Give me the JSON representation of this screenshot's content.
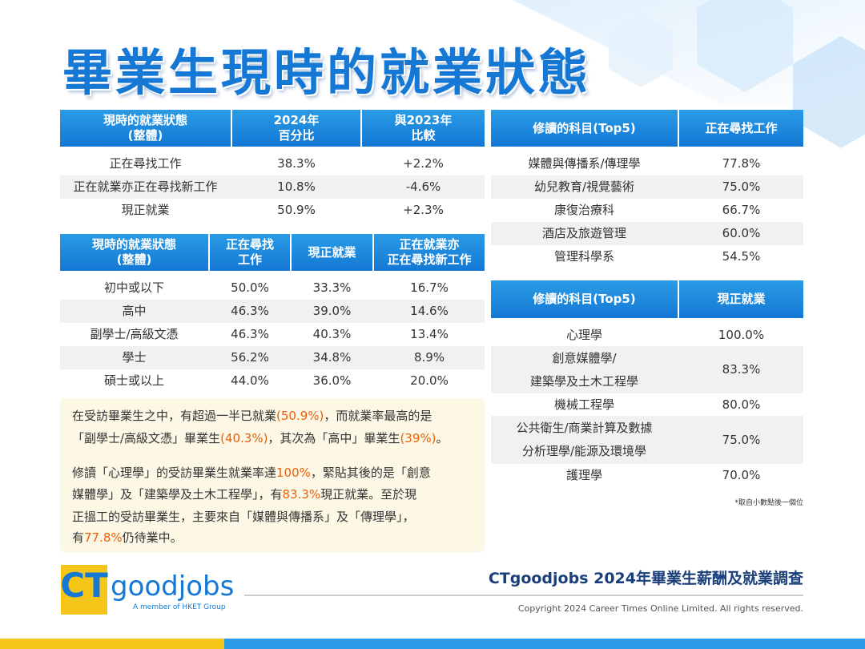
{
  "title": "畢業生現時的就業狀態",
  "table_overall": {
    "columns": [
      [
        "現時的就業狀態",
        "(整體)"
      ],
      [
        "2024年",
        "百分比"
      ],
      [
        "與2023年",
        "比較"
      ]
    ],
    "rows": [
      [
        "正在尋找工作",
        "38.3%",
        "+2.2%"
      ],
      [
        "正在就業亦正在尋找新工作",
        "10.8%",
        "-4.6%"
      ],
      [
        "現正就業",
        "50.9%",
        "+2.3%"
      ]
    ]
  },
  "table_education": {
    "columns": [
      [
        "現時的就業狀態",
        "(整體)"
      ],
      [
        "正在尋找",
        "工作"
      ],
      [
        "現正就業"
      ],
      [
        "正在就業亦",
        "正在尋找新工作"
      ]
    ],
    "rows": [
      [
        "初中或以下",
        "50.0%",
        "33.3%",
        "16.7%"
      ],
      [
        "高中",
        "46.3%",
        "39.0%",
        "14.6%"
      ],
      [
        "副學士/高級文憑",
        "46.3%",
        "40.3%",
        "13.4%"
      ],
      [
        "學士",
        "56.2%",
        "34.8%",
        "8.9%"
      ],
      [
        "碩士或以上",
        "44.0%",
        "36.0%",
        "20.0%"
      ]
    ]
  },
  "table_seeking": {
    "columns": [
      [
        "修讀的科目(Top5)"
      ],
      [
        "正在尋找工作"
      ]
    ],
    "rows": [
      [
        "媒體與傳播系/傳理學",
        "77.8%"
      ],
      [
        "幼兒教育/視覺藝術",
        "75.0%"
      ],
      [
        "康復治療科",
        "66.7%"
      ],
      [
        "酒店及旅遊管理",
        "60.0%"
      ],
      [
        "管理科學系",
        "54.5%"
      ]
    ]
  },
  "table_employed": {
    "columns": [
      [
        "修讀的科目(Top5)"
      ],
      [
        "現正就業"
      ]
    ],
    "rows": [
      [
        "心理學",
        "100.0%"
      ],
      [
        [
          "創意媒體學/",
          "建築學及土木工程學"
        ],
        "83.3%"
      ],
      [
        "機械工程學",
        "80.0%"
      ],
      [
        [
          "公共衛生/商業計算及數據",
          "分析理學/能源及環境學"
        ],
        "75.0%"
      ],
      [
        "護理學",
        "70.0%"
      ]
    ]
  },
  "note": "*取自小數點後一個位",
  "summary": [
    [
      [
        {
          "text": "在受訪畢業生之中，有超過一半已就業"
        },
        {
          "text": "(50.9%)",
          "highlight": true
        },
        {
          "text": "，而就業率最高的是"
        }
      ],
      [
        {
          "text": "「副學士/高級文憑」畢業生"
        },
        {
          "text": "(40.3%)",
          "highlight": true
        },
        {
          "text": "，其次為「高中」畢業生"
        },
        {
          "text": "(39%)",
          "highlight": true
        },
        {
          "text": "。"
        }
      ]
    ],
    [
      [
        {
          "text": "修讀「心理學」的受訪畢業生就業率達"
        },
        {
          "text": "100%",
          "highlight": true
        },
        {
          "text": "，緊貼其後的是「創意"
        }
      ],
      [
        {
          "text": "媒體學」及「建築學及土木工程學」，有"
        },
        {
          "text": "83.3%",
          "highlight": true
        },
        {
          "text": "現正就業。至於現"
        }
      ],
      [
        {
          "text": "正搵工的受訪畢業生，主要來自「媒體與傳播系」及「傳理學」，"
        }
      ],
      [
        {
          "text": "有"
        },
        {
          "text": "77.8%",
          "highlight": true
        },
        {
          "text": "仍待業中。"
        }
      ]
    ]
  ],
  "footer": {
    "logo_ct": "CT",
    "logo_word": "goodjobs",
    "logo_tagline": "A member of HKET Group",
    "survey": "CTgoodjobs 2024年畢業生薪酬及就業調查",
    "copyright": "Copyright 2024 Career Times Online Limited. All rights reserved."
  }
}
